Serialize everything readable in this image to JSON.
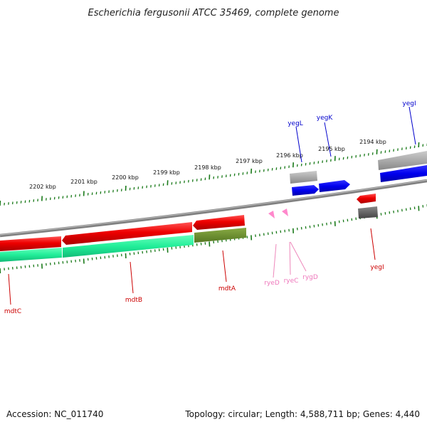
{
  "title": "Escherichia fergusonii ATCC 35469, complete genome",
  "footer": {
    "accession": "Accession: NC_011740",
    "summary": "Topology: circular; Length: 4,588,711 bp; Genes: 4,440"
  },
  "colors": {
    "tick": "#1a7a1a",
    "forward_cds": "#0000e6",
    "reverse_cds": "#e60000",
    "reverse_rna_band": "#1aff99",
    "gene_label_forward": "#0000cc",
    "gene_label_reverse": "#cc0000",
    "srna": "#ff88cc",
    "srna_label": "#ee77bb",
    "backbone": "#777777"
  },
  "scale_labels": [
    "2202 kbp",
    "2201 kbp",
    "2200 kbp",
    "2199 kbp",
    "2198 kbp",
    "2197 kbp",
    "2196 kbp",
    "2195 kbp",
    "2194 kbp"
  ],
  "genes": [
    {
      "name": "yegL",
      "strand": "forward"
    },
    {
      "name": "yegK",
      "strand": "forward"
    },
    {
      "name": "yegI",
      "strand": "forward"
    },
    {
      "name": "mdtC",
      "strand": "reverse"
    },
    {
      "name": "mdtB",
      "strand": "reverse"
    },
    {
      "name": "mdtA",
      "strand": "reverse"
    },
    {
      "name": "yegI",
      "strand": "reverse"
    },
    {
      "name": "ryeD",
      "strand": "reverse"
    },
    {
      "name": "ryeC",
      "strand": "reverse"
    },
    {
      "name": "rygD",
      "strand": "reverse"
    }
  ]
}
